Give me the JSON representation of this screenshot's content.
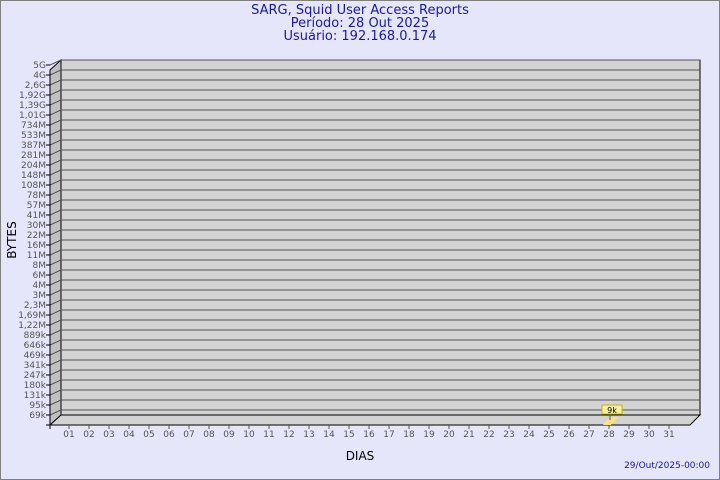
{
  "title_lines": [
    "SARG, Squid User Access Reports",
    "Período: 28 Out 2025",
    "Usuário: 192.168.0.174"
  ],
  "footer_timestamp": "29/Out/2025-00:00",
  "colors": {
    "background": "#e6e6fa",
    "title": "#1a1aa0",
    "wall": "#d3d3d3",
    "side": "#c0c0c0",
    "bar": "#ffe080",
    "label_box": "#f5f0a0"
  },
  "chart_data": {
    "type": "bar",
    "xlabel": "DIAS",
    "ylabel": "BYTES",
    "y_scale": "log",
    "y_ticks": [
      "5G",
      "4G",
      "2,6G",
      "1,92G",
      "1,39G",
      "1,01G",
      "734M",
      "533M",
      "387M",
      "281M",
      "204M",
      "148M",
      "108M",
      "78M",
      "57M",
      "41M",
      "30M",
      "22M",
      "16M",
      "11M",
      "8M",
      "6M",
      "4M",
      "3M",
      "2,3M",
      "1,69M",
      "1,22M",
      "889k",
      "646k",
      "469k",
      "341k",
      "247k",
      "180k",
      "131k",
      "95k",
      "69k"
    ],
    "categories": [
      "01",
      "02",
      "03",
      "04",
      "05",
      "06",
      "07",
      "08",
      "09",
      "10",
      "11",
      "12",
      "13",
      "14",
      "15",
      "16",
      "17",
      "18",
      "19",
      "20",
      "21",
      "22",
      "23",
      "24",
      "25",
      "26",
      "27",
      "28",
      "29",
      "30",
      "31"
    ],
    "values": [
      0,
      0,
      0,
      0,
      0,
      0,
      0,
      0,
      0,
      0,
      0,
      0,
      0,
      0,
      0,
      0,
      0,
      0,
      0,
      0,
      0,
      0,
      0,
      0,
      0,
      0,
      0,
      9000,
      0,
      0,
      0
    ],
    "data_labels": {
      "28": "9k"
    },
    "grid": true
  }
}
